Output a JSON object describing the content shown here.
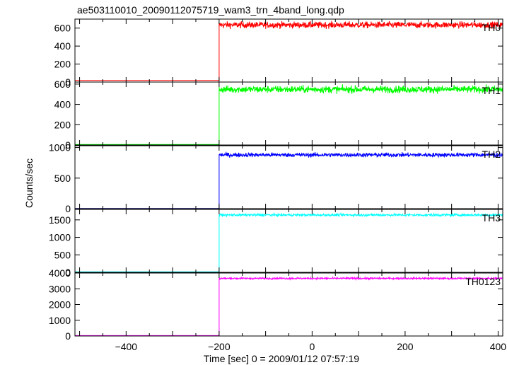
{
  "title": "ae503110010_20090112075719_wam3_trn_4band_long.qdp",
  "ylabel": "Counts/sec",
  "xlabel": "Time [sec] 0 = 2009/01/12 07:57:19",
  "chart_data": [
    {
      "type": "line",
      "name": "TH0",
      "color": "#ff0000",
      "xlim": [
        -510,
        410
      ],
      "ylim": [
        0,
        700
      ],
      "yticks": [
        0,
        200,
        400,
        600
      ],
      "pre_level": 18,
      "post_level": 635,
      "post_noise": 25,
      "step_x": -200
    },
    {
      "type": "line",
      "name": "TH1",
      "color": "#00ff00",
      "xlim": [
        -510,
        410
      ],
      "ylim": [
        0,
        620
      ],
      "yticks": [
        0,
        200,
        400,
        600
      ],
      "pre_level": 5,
      "post_level": 548,
      "post_noise": 25,
      "step_x": -200
    },
    {
      "type": "line",
      "name": "TH2",
      "color": "#0000ff",
      "xlim": [
        -510,
        410
      ],
      "ylim": [
        0,
        1030
      ],
      "yticks": [
        0,
        500,
        1000
      ],
      "pre_level": 3,
      "post_level": 880,
      "post_noise": 25,
      "step_x": -200
    },
    {
      "type": "line",
      "name": "TH3",
      "color": "#00ffff",
      "xlim": [
        -510,
        410
      ],
      "ylim": [
        0,
        1800
      ],
      "yticks": [
        0,
        500,
        1000,
        1500
      ],
      "pre_level": 15,
      "post_level": 1640,
      "post_noise": 25,
      "step_x": -200
    },
    {
      "type": "line",
      "name": "TH0123",
      "color": "#ff00ff",
      "xlim": [
        -510,
        410
      ],
      "ylim": [
        0,
        4000
      ],
      "yticks": [
        0,
        1000,
        2000,
        3000,
        4000
      ],
      "pre_level": 25,
      "post_level": 3660,
      "post_noise": 40,
      "step_x": -200
    }
  ],
  "xticks": [
    -400,
    -200,
    0,
    200,
    400
  ]
}
